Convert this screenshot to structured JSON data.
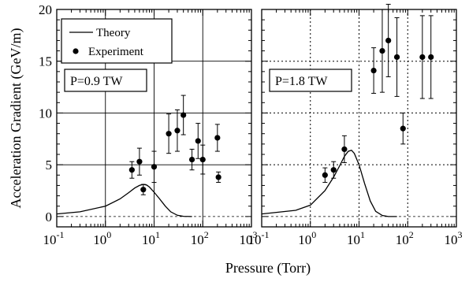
{
  "chart_data": [
    {
      "type": "scatter",
      "panel_label": "P=0.9 TW",
      "xlabel": "Pressure  (Torr)",
      "ylabel": "Acceleration Gradient  (GeV/m)",
      "xscale": "log",
      "xlim": [
        0.1,
        1000
      ],
      "ylim": [
        -1,
        20
      ],
      "yticks": [
        0,
        5,
        10,
        15,
        20
      ],
      "xticks": [
        {
          "base": "10",
          "exp": "-1"
        },
        {
          "base": "10",
          "exp": "0"
        },
        {
          "base": "10",
          "exp": "1"
        },
        {
          "base": "10",
          "exp": "2"
        },
        {
          "base": "10",
          "exp": "3"
        }
      ],
      "grid": "solid",
      "legend": {
        "position": "top-left",
        "entries": [
          "Theory",
          "Experiment"
        ]
      },
      "series": [
        {
          "name": "Theory",
          "style": "line",
          "x": [
            0.1,
            0.3,
            1,
            2,
            3,
            4,
            5,
            6,
            7,
            8,
            10,
            13,
            17,
            22,
            30,
            40,
            60
          ],
          "y": [
            0.25,
            0.45,
            1.0,
            1.7,
            2.3,
            2.75,
            3.0,
            3.1,
            3.05,
            2.85,
            2.35,
            1.7,
            1.0,
            0.45,
            0.12,
            0.02,
            0
          ]
        },
        {
          "name": "Experiment",
          "style": "points",
          "x": [
            3.5,
            5,
            6,
            10,
            20,
            30,
            40,
            60,
            80,
            100,
            200,
            210
          ],
          "y": [
            4.5,
            5.3,
            2.6,
            4.8,
            8.0,
            8.3,
            9.8,
            5.5,
            7.3,
            5.5,
            7.6,
            3.8
          ],
          "err": [
            0.8,
            1.3,
            0.5,
            1.5,
            1.9,
            2.0,
            1.9,
            1.0,
            1.7,
            1.4,
            1.3,
            0.5
          ]
        }
      ]
    },
    {
      "type": "scatter",
      "panel_label": "P=1.8 TW",
      "xscale": "log",
      "xlim": [
        0.1,
        1000
      ],
      "ylim": [
        -1,
        20
      ],
      "yticks": [
        0,
        5,
        10,
        15,
        20
      ],
      "xticks": [
        {
          "base": "10",
          "exp": "-1"
        },
        {
          "base": "10",
          "exp": "0"
        },
        {
          "base": "10",
          "exp": "1"
        },
        {
          "base": "10",
          "exp": "2"
        },
        {
          "base": "10",
          "exp": "3"
        }
      ],
      "grid": "dotted",
      "series": [
        {
          "name": "Theory",
          "style": "line",
          "x": [
            0.1,
            0.5,
            1,
            2,
            3,
            4,
            5,
            6,
            7,
            8,
            10,
            13,
            17,
            22,
            30,
            40,
            60
          ],
          "y": [
            0.25,
            0.6,
            1.1,
            2.5,
            3.8,
            4.9,
            5.8,
            6.3,
            6.4,
            6.1,
            5.0,
            3.2,
            1.5,
            0.5,
            0.1,
            0,
            0
          ]
        },
        {
          "name": "Experiment",
          "style": "points",
          "x": [
            2,
            3,
            5,
            20,
            30,
            40,
            60,
            80,
            200,
            300
          ],
          "y": [
            4.0,
            4.5,
            6.5,
            14.1,
            16.0,
            17.0,
            15.4,
            8.5,
            15.4,
            15.4
          ],
          "err": [
            0.7,
            0.8,
            1.3,
            2.2,
            4.0,
            3.5,
            3.8,
            1.5,
            4.0,
            4.0
          ]
        }
      ]
    }
  ]
}
